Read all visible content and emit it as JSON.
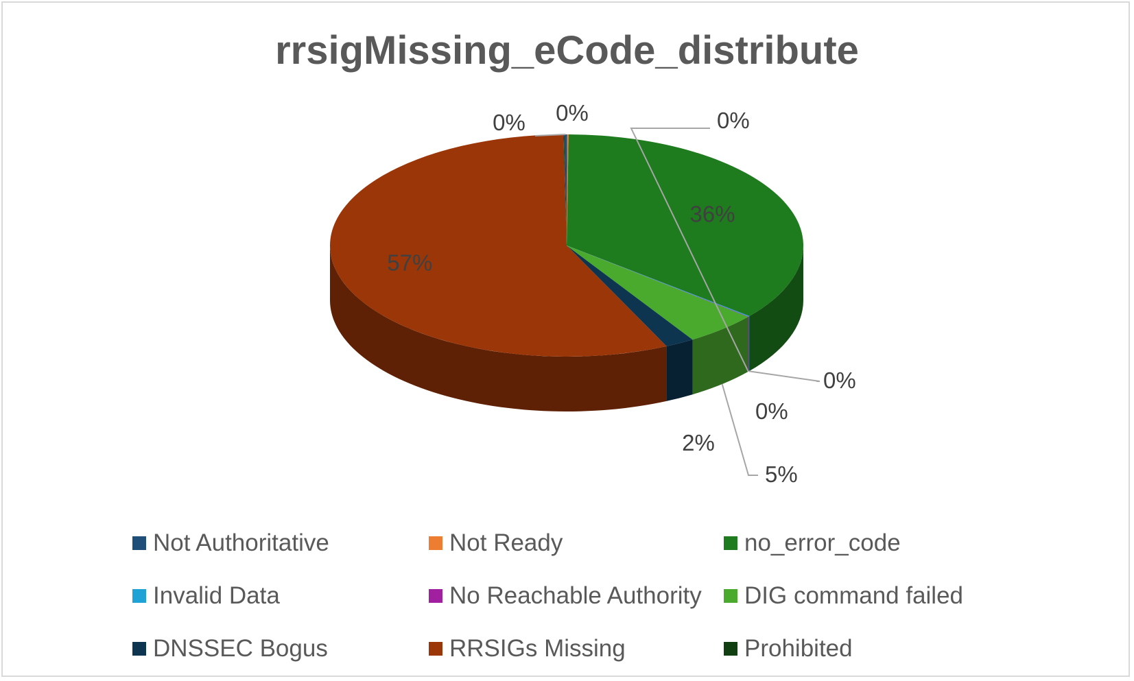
{
  "chart_data": {
    "type": "pie",
    "title": "rrsigMissing_eCode_distribute",
    "slices": [
      {
        "name": "Not Authoritative",
        "value": 0.2,
        "label": "0%",
        "color": "#1f4e79"
      },
      {
        "name": "Not Ready",
        "value": 0.1,
        "label": "0%",
        "color": "#ed7d31"
      },
      {
        "name": "no_error_code",
        "value": 36,
        "label": "36%",
        "color": "#1e7b1e"
      },
      {
        "name": "Invalid Data",
        "value": 0.1,
        "label": "0%",
        "color": "#1fa3d6"
      },
      {
        "name": "No Reachable Authority",
        "value": 0.05,
        "label": "0%",
        "color": "#a020a0"
      },
      {
        "name": "DIG command failed",
        "value": 5,
        "label": "5%",
        "color": "#4aaa2e"
      },
      {
        "name": "DNSSEC Bogus",
        "value": 2,
        "label": "2%",
        "color": "#0d3550"
      },
      {
        "name": "RRSIGs Missing",
        "value": 57,
        "label": "57%",
        "color": "#9a3608"
      },
      {
        "name": "Prohibited",
        "value": 0.05,
        "label": "0%",
        "color": "#123f12"
      }
    ],
    "legend_position": "bottom"
  }
}
